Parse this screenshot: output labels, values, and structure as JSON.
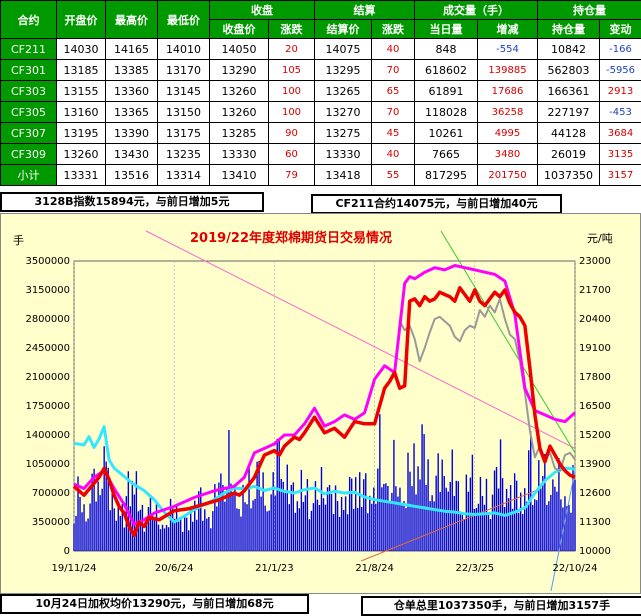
{
  "table": {
    "headers_top": [
      "合约",
      "开盘价",
      "最高价",
      "最低价",
      "收盘",
      "结算",
      "成交量（手）",
      "持仓量"
    ],
    "headers_sub": [
      "收盘价",
      "涨跌",
      "结算价",
      "涨跌",
      "当日量",
      "增减",
      "持仓量",
      "变动"
    ],
    "rows": [
      [
        "CF211",
        "14030",
        "14165",
        "14010",
        "14050",
        "20",
        "14075",
        "40",
        "848",
        "-554",
        "10842",
        "-166"
      ],
      [
        "CF301",
        "13185",
        "13385",
        "13170",
        "13290",
        "105",
        "13295",
        "70",
        "618602",
        "139885",
        "562803",
        "-5956"
      ],
      [
        "CF303",
        "13155",
        "13360",
        "13145",
        "13260",
        "100",
        "13265",
        "65",
        "61891",
        "17686",
        "166361",
        "2913"
      ],
      [
        "CF305",
        "13160",
        "13365",
        "13150",
        "13260",
        "100",
        "13270",
        "70",
        "118028",
        "36258",
        "227197",
        "-453"
      ],
      [
        "CF307",
        "13195",
        "13390",
        "13175",
        "13285",
        "90",
        "13275",
        "45",
        "10261",
        "4995",
        "44128",
        "3684"
      ],
      [
        "CF309",
        "13260",
        "13430",
        "13235",
        "13330",
        "60",
        "13330",
        "40",
        "7665",
        "3480",
        "26019",
        "3135"
      ],
      [
        "小计",
        "13331",
        "13516",
        "13314",
        "13410",
        "79",
        "13418",
        "55",
        "817295",
        "201750",
        "1037350",
        "3157"
      ]
    ]
  },
  "info": {
    "index_text": "3128B指数15894元，与前日增加5元",
    "contract_text": "CF211合约14075元，与前日增加40元",
    "weighted_text": "10月24日加权均价13290元，与前日增加68元",
    "warehouse_text": "仓单总里1037350手，与前日增加3157手"
  },
  "chart_data": {
    "type": "bar+line",
    "title": "2019/22年度郑棉期货日交易情况",
    "left_unit": "手",
    "right_unit": "元/吨",
    "left_ticks": [
      0,
      350000,
      700000,
      1050000,
      1400000,
      1750000,
      2100000,
      2450000,
      2800000,
      3150000,
      3500000
    ],
    "left_tick_labels": [
      "0",
      "350000",
      "700000",
      "1050000",
      "1400000",
      "1750000",
      "2100000",
      "2450000",
      "2800000",
      "3150000",
      "3500000"
    ],
    "right_ticks": [
      10000,
      11300,
      12600,
      13900,
      15200,
      16500,
      17800,
      19100,
      20400,
      21700,
      23000
    ],
    "right_tick_labels": [
      "10000",
      "11300",
      "12600",
      "13900",
      "15200",
      "16500",
      "17800",
      "19100",
      "20400",
      "21700",
      "23000"
    ],
    "x_ticks": [
      "19/11/24",
      "20/6/24",
      "21/1/23",
      "21/8/24",
      "22/3/25",
      "22/10/24"
    ],
    "colors": {
      "volume_bars": "#0000dd",
      "open_interest": "#33e6ff",
      "settlement": "#ee0000",
      "high_price": "#ff00ff",
      "gray_series": "#999999",
      "green_line": "#33cc33",
      "pink_line": "#ff66cc",
      "frame": "#ffffcc"
    },
    "series": [
      {
        "key": "settlement",
        "axis": "right",
        "x": [
          0,
          0.01,
          0.02,
          0.035,
          0.05,
          0.06,
          0.07,
          0.08,
          0.09,
          0.1,
          0.11,
          0.12,
          0.13,
          0.14,
          0.15,
          0.17,
          0.2,
          0.23,
          0.26,
          0.29,
          0.3,
          0.32,
          0.33,
          0.34,
          0.36,
          0.38,
          0.4,
          0.41,
          0.42,
          0.44,
          0.45,
          0.46,
          0.48,
          0.5,
          0.52,
          0.54,
          0.56,
          0.58,
          0.6,
          0.62,
          0.63,
          0.64,
          0.65,
          0.66,
          0.67,
          0.68,
          0.69,
          0.7,
          0.71,
          0.72,
          0.73,
          0.74,
          0.75,
          0.76,
          0.77,
          0.78,
          0.79,
          0.8,
          0.81,
          0.82,
          0.83,
          0.84,
          0.85,
          0.86,
          0.87,
          0.88,
          0.89,
          0.9,
          0.91,
          0.92,
          0.93,
          0.94,
          0.95,
          0.96,
          0.97,
          0.98,
          0.99,
          1.0
        ],
        "values": [
          12900,
          12700,
          12500,
          12900,
          13300,
          13700,
          13200,
          12500,
          12000,
          11700,
          11100,
          10700,
          11300,
          11100,
          11500,
          11400,
          11800,
          11900,
          12100,
          12300,
          12400,
          12600,
          12500,
          12700,
          13300,
          14300,
          14500,
          14300,
          14700,
          15100,
          15000,
          15300,
          16000,
          15300,
          15500,
          15100,
          15800,
          15700,
          15700,
          17300,
          17600,
          18000,
          17300,
          17400,
          21200,
          21300,
          21000,
          21400,
          21200,
          21300,
          21600,
          21500,
          21400,
          21200,
          21800,
          21500,
          21200,
          21700,
          21200,
          21000,
          21300,
          21600,
          21400,
          21700,
          21100,
          20700,
          20500,
          20100,
          18200,
          16100,
          14600,
          14000,
          14700,
          14300,
          13900,
          13600,
          13400,
          13300
        ]
      },
      {
        "key": "high_price",
        "axis": "right",
        "x": [
          0,
          0.02,
          0.04,
          0.06,
          0.08,
          0.1,
          0.12,
          0.14,
          0.16,
          0.2,
          0.24,
          0.28,
          0.3,
          0.32,
          0.34,
          0.36,
          0.38,
          0.4,
          0.42,
          0.44,
          0.46,
          0.48,
          0.5,
          0.52,
          0.54,
          0.56,
          0.58,
          0.6,
          0.62,
          0.64,
          0.66,
          0.67,
          0.68,
          0.7,
          0.72,
          0.74,
          0.76,
          0.78,
          0.8,
          0.82,
          0.84,
          0.86,
          0.88,
          0.9,
          0.92,
          0.94,
          0.96,
          0.98,
          1.0
        ],
        "values": [
          13000,
          12800,
          13300,
          13600,
          12800,
          12100,
          11200,
          11400,
          11700,
          12000,
          12400,
          12700,
          12800,
          12900,
          13300,
          14400,
          14600,
          14800,
          15200,
          15200,
          15700,
          16400,
          15600,
          15800,
          16100,
          15900,
          16200,
          17700,
          18300,
          18000,
          22000,
          22300,
          22200,
          22500,
          22700,
          22600,
          22800,
          22700,
          22600,
          22500,
          22400,
          22100,
          20600,
          17300,
          16300,
          16100,
          15900,
          15800,
          16200
        ]
      },
      {
        "key": "gray_series",
        "axis": "right",
        "x": [
          0.65,
          0.66,
          0.67,
          0.68,
          0.69,
          0.7,
          0.71,
          0.72,
          0.73,
          0.74,
          0.75,
          0.76,
          0.77,
          0.78,
          0.79,
          0.8,
          0.81,
          0.82,
          0.83,
          0.84,
          0.85,
          0.86,
          0.87,
          0.88,
          0.89,
          0.9,
          0.91,
          0.92,
          0.93,
          0.94,
          0.95,
          0.96,
          0.97,
          0.98,
          0.99,
          1.0
        ],
        "values": [
          20300,
          19900,
          20100,
          19500,
          18500,
          19100,
          19800,
          20400,
          20500,
          20300,
          20100,
          19600,
          19400,
          19900,
          20100,
          20000,
          20800,
          20500,
          21000,
          20700,
          21300,
          20400,
          19700,
          19500,
          18500,
          17100,
          15400,
          14200,
          14700,
          14100,
          14400,
          13700,
          13600,
          14300,
          14400,
          14100
        ]
      },
      {
        "key": "open_interest",
        "axis": "left",
        "x": [
          0,
          0.02,
          0.03,
          0.04,
          0.05,
          0.06,
          0.07,
          0.08,
          0.1,
          0.12,
          0.14,
          0.16,
          0.18,
          0.2,
          0.22,
          0.24,
          0.26,
          0.28,
          0.3,
          0.32,
          0.34,
          0.36,
          0.38,
          0.4,
          0.42,
          0.44,
          0.46,
          0.48,
          0.5,
          0.52,
          0.54,
          0.56,
          0.58,
          0.6,
          0.62,
          0.64,
          0.66,
          0.68,
          0.7,
          0.72,
          0.74,
          0.76,
          0.78,
          0.8,
          0.82,
          0.84,
          0.86,
          0.88,
          0.9,
          0.92,
          0.94,
          0.96,
          0.98,
          1.0
        ],
        "values": [
          1300000,
          1280000,
          1380000,
          1250000,
          1350000,
          1500000,
          1100000,
          1000000,
          900000,
          800000,
          730000,
          620000,
          470000,
          350000,
          420000,
          500000,
          560000,
          620000,
          700000,
          760000,
          750000,
          780000,
          730000,
          760000,
          720000,
          700000,
          740000,
          760000,
          690000,
          720000,
          700000,
          710000,
          650000,
          620000,
          600000,
          580000,
          560000,
          540000,
          520000,
          500000,
          480000,
          470000,
          450000,
          440000,
          450000,
          460000,
          430000,
          470000,
          520000,
          700000,
          850000,
          950000,
          1000000,
          990000
        ]
      },
      {
        "key": "volume_bars",
        "axis": "left",
        "x": [
          0,
          0.01,
          0.02,
          0.03,
          0.04,
          0.05,
          0.06,
          0.07,
          0.08,
          0.09,
          0.1,
          0.11,
          0.12,
          0.13,
          0.14,
          0.15,
          0.16,
          0.17,
          0.18,
          0.19,
          0.2,
          0.21,
          0.22,
          0.23,
          0.24,
          0.25,
          0.26,
          0.27,
          0.28,
          0.29,
          0.3,
          0.31,
          0.32,
          0.33,
          0.34,
          0.35,
          0.36,
          0.37,
          0.38,
          0.39,
          0.4,
          0.41,
          0.42,
          0.43,
          0.44,
          0.45,
          0.46,
          0.47,
          0.48,
          0.49,
          0.5,
          0.51,
          0.52,
          0.53,
          0.54,
          0.55,
          0.56,
          0.57,
          0.58,
          0.59,
          0.6,
          0.61,
          0.62,
          0.63,
          0.64,
          0.65,
          0.66,
          0.67,
          0.68,
          0.69,
          0.7,
          0.71,
          0.72,
          0.73,
          0.74,
          0.75,
          0.76,
          0.77,
          0.78,
          0.79,
          0.8,
          0.81,
          0.82,
          0.83,
          0.84,
          0.85,
          0.86,
          0.87,
          0.88,
          0.89,
          0.9,
          0.91,
          0.92,
          0.93,
          0.94,
          0.95,
          0.96,
          0.97,
          0.98,
          0.99,
          1.0
        ],
        "values": [
          600000,
          800000,
          450000,
          700000,
          1000000,
          600000,
          1550000,
          800000,
          500000,
          700000,
          400000,
          900000,
          1100000,
          600000,
          350000,
          700000,
          500000,
          400000,
          300000,
          450000,
          600000,
          500000,
          350000,
          400000,
          650000,
          700000,
          500000,
          450000,
          600000,
          900000,
          1000000,
          1150000,
          700000,
          800000,
          600000,
          850000,
          900000,
          1050000,
          700000,
          650000,
          900000,
          1400000,
          1000000,
          800000,
          700000,
          900000,
          750000,
          650000,
          800000,
          700000,
          900000,
          850000,
          600000,
          700000,
          650000,
          750000,
          900000,
          950000,
          800000,
          700000,
          800000,
          1300000,
          850000,
          900000,
          1050000,
          700000,
          850000,
          1000000,
          1150000,
          1400000,
          1300000,
          800000,
          900000,
          1050000,
          950000,
          1100000,
          900000,
          700000,
          650000,
          1000000,
          900000,
          800000,
          700000,
          650000,
          1000000,
          1100000,
          900000,
          750000,
          800000,
          800000,
          700000,
          1300000,
          700000,
          1150000,
          900000,
          700000,
          1050000,
          800000,
          650000,
          700000,
          900000
        ]
      }
    ]
  }
}
